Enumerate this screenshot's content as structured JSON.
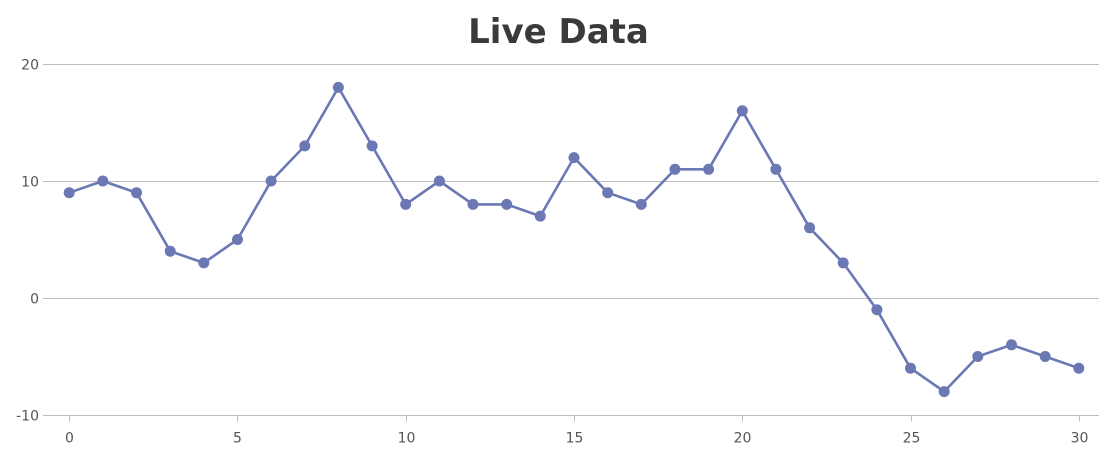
{
  "chart_data": {
    "type": "line",
    "title": "Live Data",
    "xlabel": "",
    "ylabel": "",
    "xlim": [
      -0.6,
      30.6
    ],
    "ylim": [
      -10,
      20
    ],
    "x_ticks": [
      "0",
      "5",
      "10",
      "15",
      "20",
      "25",
      "30"
    ],
    "y_ticks": [
      "-10",
      "0",
      "10",
      "20"
    ],
    "x_tick_values": [
      0,
      5,
      10,
      15,
      20,
      25,
      30
    ],
    "y_tick_values": [
      -10,
      0,
      10,
      20
    ],
    "grid": true,
    "legend": "none",
    "series": [
      {
        "color": "#6b78b4",
        "x": [
          0,
          1,
          2,
          3,
          4,
          5,
          6,
          7,
          8,
          9,
          10,
          11,
          12,
          13,
          14,
          15,
          16,
          17,
          18,
          19,
          20,
          21,
          22,
          23,
          24,
          25,
          26,
          27,
          28,
          29,
          30
        ],
        "y": [
          9,
          10,
          9,
          4,
          3,
          5,
          10,
          13,
          18,
          13,
          8,
          10,
          8,
          8,
          7,
          12,
          9,
          8,
          11,
          11,
          16,
          11,
          6,
          3,
          -1,
          -6,
          -8,
          -5,
          -4,
          -5,
          -6
        ]
      }
    ]
  }
}
